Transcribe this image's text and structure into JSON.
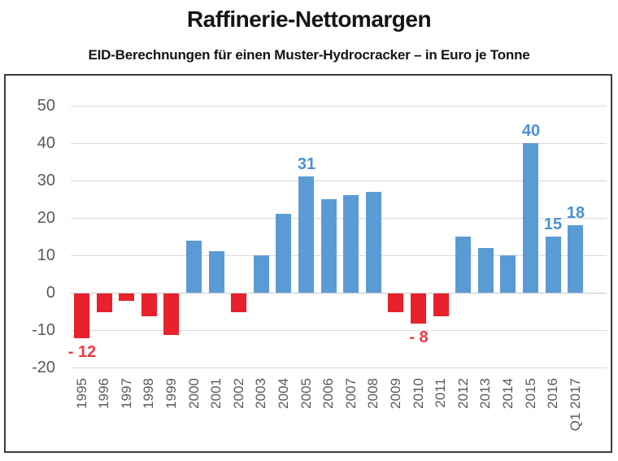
{
  "chart_data": {
    "type": "bar",
    "title": "Raffinerie-Nettomargen",
    "subtitle": "EID-Berechnungen für einen Muster-Hydrocracker – in Euro je Tonne",
    "ylabel": "Euro je Tonne",
    "ylim": [
      -20,
      50
    ],
    "grid": true,
    "legend": "none",
    "colors": {
      "positive_bar": "#5b9bd5",
      "negative_bar": "#e8212c",
      "positive_label": "#4b90cf",
      "negative_label": "#ee3a45",
      "tick_text": "#595959",
      "gridline": "#d9d9d9",
      "zero_line": "#c9c9c9",
      "frame_border": "#3c3c3c"
    },
    "yticks": [
      {
        "label": "50",
        "value": 50
      },
      {
        "label": "40",
        "value": 40
      },
      {
        "label": "30",
        "value": 30
      },
      {
        "label": "20",
        "value": 20
      },
      {
        "label": "10",
        "value": 10
      },
      {
        "label": "0",
        "value": 0
      },
      {
        "label": "-10",
        "value": -10
      },
      {
        "label": "-20",
        "value": -20
      }
    ],
    "points": [
      {
        "category": "1995",
        "value": -12,
        "data_label": "- 12",
        "label_position": "below"
      },
      {
        "category": "1996",
        "value": -5
      },
      {
        "category": "1997",
        "value": -2
      },
      {
        "category": "1998",
        "value": -6
      },
      {
        "category": "1999",
        "value": -11
      },
      {
        "category": "2000",
        "value": 14
      },
      {
        "category": "2001",
        "value": 11
      },
      {
        "category": "2002",
        "value": -5
      },
      {
        "category": "2003",
        "value": 10
      },
      {
        "category": "2004",
        "value": 21
      },
      {
        "category": "2005",
        "value": 31,
        "data_label": "31",
        "label_position": "above"
      },
      {
        "category": "2006",
        "value": 25
      },
      {
        "category": "2007",
        "value": 26
      },
      {
        "category": "2008",
        "value": 27
      },
      {
        "category": "2009",
        "value": -5
      },
      {
        "category": "2010",
        "value": -8,
        "data_label": "- 8",
        "label_position": "below"
      },
      {
        "category": "2011",
        "value": -6
      },
      {
        "category": "2012",
        "value": 15
      },
      {
        "category": "2013",
        "value": 12
      },
      {
        "category": "2014",
        "value": 10
      },
      {
        "category": "2015",
        "value": 40,
        "data_label": "40",
        "label_position": "above"
      },
      {
        "category": "2016",
        "value": 15,
        "data_label": "15",
        "label_position": "above"
      },
      {
        "category": "Q1 2017",
        "value": 18,
        "data_label": "18",
        "label_position": "above"
      }
    ]
  }
}
